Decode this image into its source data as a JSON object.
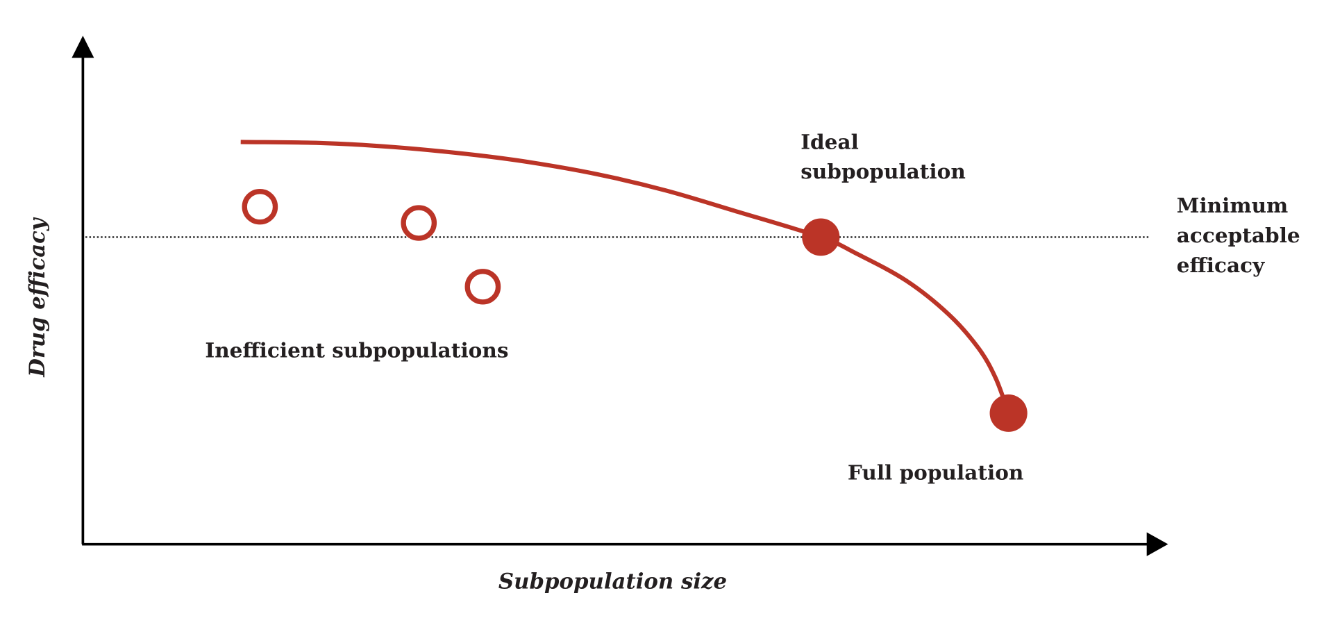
{
  "colors": {
    "accent": "#bb3427",
    "axis": "#000000",
    "text": "#231f20"
  },
  "chart_data": {
    "type": "line",
    "title": "",
    "xlabel": "Subpopulation size",
    "ylabel": "Drug efficacy",
    "xlim": [
      0,
      100
    ],
    "ylim": [
      0,
      100
    ],
    "grid": false,
    "ticks": "none (conceptual axes)",
    "curve": {
      "x": [
        14.8,
        22.3,
        29.1,
        36.1,
        41.9,
        48.3,
        54.7,
        61.1,
        69.2,
        72.4,
        77.2,
        81.2,
        84.0,
        85.6,
        86.8
      ],
      "y": [
        79.5,
        79.3,
        78.5,
        77.1,
        75.5,
        73.1,
        69.9,
        65.9,
        60.7,
        57.6,
        52.1,
        45.4,
        38.7,
        32.8,
        25.9
      ]
    },
    "threshold": {
      "y": 60.7,
      "style": "dotted",
      "label": [
        "Minimum",
        "acceptable",
        "efficacy"
      ]
    },
    "open_points": {
      "label": "Inefficient subpopulations",
      "x": [
        16.6,
        31.5,
        37.5
      ],
      "y": [
        66.7,
        63.5,
        50.9
      ]
    },
    "filled_points": [
      {
        "x": 69.2,
        "y": 60.7,
        "label": [
          "Ideal",
          "subpopulation"
        ]
      },
      {
        "x": 86.8,
        "y": 25.9,
        "label": [
          "Full population"
        ]
      }
    ]
  }
}
